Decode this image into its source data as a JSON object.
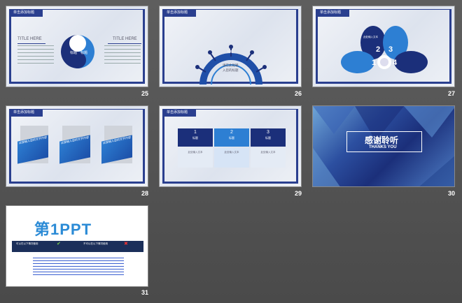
{
  "slides": [
    {
      "num": "25",
      "header": "单击添加标题",
      "title_left": "TITLE HERE",
      "title_right": "TITLE HERE",
      "yin_label": "标题",
      "yang_label": "标题"
    },
    {
      "num": "26",
      "header": "单击添加标题",
      "center_line1": "请在此处输",
      "center_line2": "入您的标题",
      "spoke_label": "标题"
    },
    {
      "num": "27",
      "header": "单击添加标题",
      "petal_text": "此处输入文本",
      "n1": "1",
      "n2": "2",
      "n3": "3",
      "n4": "4"
    },
    {
      "num": "28",
      "header": "单击添加标题",
      "card_text": "这里输入您的文字内容"
    },
    {
      "num": "29",
      "header": "单击添加标题",
      "col1_num": "1",
      "col2_num": "2",
      "col3_num": "3",
      "col_title": "标题",
      "row_text": "此处输入文本"
    },
    {
      "num": "30",
      "thanks_cn": "感谢聆听",
      "thanks_en": "THANKS YOU"
    },
    {
      "num": "31",
      "logo": "第1PPT",
      "bar_left": "可以在以下情况使用",
      "bar_right": "不可以在以下情况使用"
    }
  ],
  "colors": {
    "navy": "#2a3f8f",
    "blue": "#1f6fd6",
    "bg": "#555555"
  }
}
